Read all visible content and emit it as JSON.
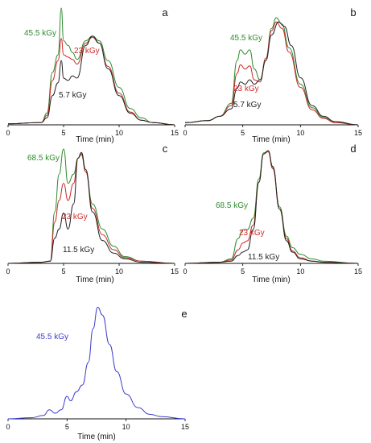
{
  "chart_data": [
    {
      "id": "a",
      "type": "line",
      "panel_label": "a",
      "xlabel": "Time (min)",
      "ylabel": "",
      "xlim": [
        0,
        15
      ],
      "ylim": [
        0,
        1
      ],
      "xticks": [
        "0",
        "5",
        "10",
        "15"
      ],
      "grid": false,
      "legend": "inline labels",
      "series": [
        {
          "name": "45.5 kGy",
          "color": "#2e8b2e",
          "points": [
            [
              0,
              0.01
            ],
            [
              3,
              0.02
            ],
            [
              3.5,
              0.1
            ],
            [
              4,
              0.45
            ],
            [
              4.5,
              0.6
            ],
            [
              4.8,
              1.0
            ],
            [
              5.0,
              0.72
            ],
            [
              5.4,
              0.68
            ],
            [
              5.8,
              0.62
            ],
            [
              6.2,
              0.56
            ],
            [
              7.0,
              0.72
            ],
            [
              7.6,
              0.76
            ],
            [
              8.2,
              0.72
            ],
            [
              9.0,
              0.55
            ],
            [
              10,
              0.32
            ],
            [
              11,
              0.14
            ],
            [
              12,
              0.06
            ],
            [
              13,
              0.02
            ],
            [
              15,
              0.0
            ]
          ]
        },
        {
          "name": "23 kGy",
          "color": "#cc2a2a",
          "points": [
            [
              0,
              0.01
            ],
            [
              3,
              0.02
            ],
            [
              3.5,
              0.08
            ],
            [
              4,
              0.38
            ],
            [
              4.5,
              0.55
            ],
            [
              4.8,
              0.74
            ],
            [
              5.0,
              0.6
            ],
            [
              5.4,
              0.58
            ],
            [
              5.8,
              0.56
            ],
            [
              6.2,
              0.52
            ],
            [
              7.0,
              0.7
            ],
            [
              7.6,
              0.75
            ],
            [
              8.2,
              0.7
            ],
            [
              9.0,
              0.5
            ],
            [
              10,
              0.27
            ],
            [
              11,
              0.11
            ],
            [
              12,
              0.04
            ],
            [
              13,
              0.02
            ],
            [
              15,
              0.0
            ]
          ]
        },
        {
          "name": "5.7 kGy",
          "color": "#222222",
          "points": [
            [
              0,
              0.01
            ],
            [
              3,
              0.02
            ],
            [
              3.5,
              0.06
            ],
            [
              4,
              0.25
            ],
            [
              4.5,
              0.36
            ],
            [
              4.8,
              0.55
            ],
            [
              5.0,
              0.4
            ],
            [
              5.4,
              0.38
            ],
            [
              5.8,
              0.42
            ],
            [
              6.2,
              0.4
            ],
            [
              7.0,
              0.68
            ],
            [
              7.6,
              0.76
            ],
            [
              8.2,
              0.7
            ],
            [
              9.0,
              0.48
            ],
            [
              10,
              0.25
            ],
            [
              11,
              0.1
            ],
            [
              12,
              0.04
            ],
            [
              13,
              0.02
            ],
            [
              15,
              0.0
            ]
          ]
        }
      ],
      "annotations": [
        "45.5 kGy",
        "23 kGy",
        "5.7 kGy"
      ]
    },
    {
      "id": "b",
      "type": "line",
      "panel_label": "b",
      "xlabel": "Time (min)",
      "ylabel": "",
      "xlim": [
        0,
        15
      ],
      "ylim": [
        0,
        1
      ],
      "xticks": [
        "0",
        "5",
        "10",
        "15"
      ],
      "grid": false,
      "legend": "inline labels",
      "series": [
        {
          "name": "45.5 kGy",
          "color": "#2e8b2e",
          "points": [
            [
              0,
              0.02
            ],
            [
              2,
              0.04
            ],
            [
              3,
              0.08
            ],
            [
              4,
              0.2
            ],
            [
              4.5,
              0.6
            ],
            [
              4.8,
              0.7
            ],
            [
              5.2,
              0.66
            ],
            [
              5.6,
              0.7
            ],
            [
              6.0,
              0.52
            ],
            [
              6.5,
              0.42
            ],
            [
              7.0,
              0.62
            ],
            [
              7.5,
              0.9
            ],
            [
              7.9,
              1.0
            ],
            [
              8.4,
              0.94
            ],
            [
              9.0,
              0.72
            ],
            [
              10,
              0.38
            ],
            [
              11,
              0.16
            ],
            [
              12,
              0.07
            ],
            [
              13,
              0.03
            ],
            [
              15,
              0.0
            ]
          ]
        },
        {
          "name": "23 kGy",
          "color": "#cc2a2a",
          "points": [
            [
              0,
              0.02
            ],
            [
              2,
              0.04
            ],
            [
              3,
              0.08
            ],
            [
              4,
              0.18
            ],
            [
              4.5,
              0.48
            ],
            [
              4.8,
              0.56
            ],
            [
              5.2,
              0.52
            ],
            [
              5.6,
              0.55
            ],
            [
              6.0,
              0.42
            ],
            [
              6.5,
              0.4
            ],
            [
              7.0,
              0.62
            ],
            [
              7.5,
              0.88
            ],
            [
              7.9,
              0.96
            ],
            [
              8.4,
              0.9
            ],
            [
              9.0,
              0.68
            ],
            [
              10,
              0.35
            ],
            [
              11,
              0.14
            ],
            [
              12,
              0.06
            ],
            [
              13,
              0.02
            ],
            [
              15,
              0.0
            ]
          ]
        },
        {
          "name": "5.7 kGy",
          "color": "#222222",
          "points": [
            [
              0,
              0.02
            ],
            [
              2,
              0.04
            ],
            [
              3,
              0.08
            ],
            [
              4,
              0.15
            ],
            [
              4.5,
              0.34
            ],
            [
              4.8,
              0.4
            ],
            [
              5.2,
              0.38
            ],
            [
              5.6,
              0.42
            ],
            [
              6.0,
              0.38
            ],
            [
              6.5,
              0.42
            ],
            [
              7.0,
              0.6
            ],
            [
              7.5,
              0.84
            ],
            [
              8.1,
              0.96
            ],
            [
              8.6,
              0.92
            ],
            [
              9.2,
              0.74
            ],
            [
              10,
              0.44
            ],
            [
              11,
              0.18
            ],
            [
              12,
              0.08
            ],
            [
              13,
              0.03
            ],
            [
              15,
              0.0
            ]
          ]
        }
      ],
      "annotations": [
        "45.5 kGy",
        "23 kGy",
        "5.7 kGy"
      ]
    },
    {
      "id": "c",
      "type": "line",
      "panel_label": "c",
      "xlabel": "Time (min)",
      "ylabel": "",
      "xlim": [
        0,
        15
      ],
      "ylim": [
        0,
        1
      ],
      "xticks": [
        "0",
        "5",
        "10",
        "15"
      ],
      "grid": false,
      "legend": "inline labels",
      "series": [
        {
          "name": "68.5 kGy",
          "color": "#2e8b2e",
          "points": [
            [
              0,
              0.0
            ],
            [
              3,
              0.01
            ],
            [
              3.8,
              0.02
            ],
            [
              4.2,
              0.45
            ],
            [
              4.6,
              0.78
            ],
            [
              5.0,
              1.0
            ],
            [
              5.4,
              0.7
            ],
            [
              5.9,
              0.78
            ],
            [
              6.3,
              0.92
            ],
            [
              6.6,
              0.95
            ],
            [
              7.0,
              0.8
            ],
            [
              7.6,
              0.52
            ],
            [
              8.5,
              0.3
            ],
            [
              9.5,
              0.15
            ],
            [
              10.5,
              0.06
            ],
            [
              12,
              0.02
            ],
            [
              15,
              0.0
            ]
          ]
        },
        {
          "name": "23 kGy",
          "color": "#cc2a2a",
          "points": [
            [
              0,
              0.0
            ],
            [
              3,
              0.01
            ],
            [
              3.8,
              0.02
            ],
            [
              4.2,
              0.36
            ],
            [
              4.6,
              0.55
            ],
            [
              5.0,
              0.7
            ],
            [
              5.4,
              0.55
            ],
            [
              5.9,
              0.7
            ],
            [
              6.3,
              0.92
            ],
            [
              6.6,
              0.96
            ],
            [
              7.0,
              0.8
            ],
            [
              7.6,
              0.48
            ],
            [
              8.5,
              0.25
            ],
            [
              9.5,
              0.12
            ],
            [
              10.5,
              0.05
            ],
            [
              12,
              0.02
            ],
            [
              15,
              0.0
            ]
          ]
        },
        {
          "name": "11.5 kGy",
          "color": "#222222",
          "points": [
            [
              0,
              0.0
            ],
            [
              3,
              0.01
            ],
            [
              3.8,
              0.02
            ],
            [
              4.2,
              0.22
            ],
            [
              4.6,
              0.3
            ],
            [
              5.0,
              0.44
            ],
            [
              5.4,
              0.3
            ],
            [
              5.9,
              0.52
            ],
            [
              6.3,
              0.92
            ],
            [
              6.6,
              0.97
            ],
            [
              7.0,
              0.82
            ],
            [
              7.6,
              0.45
            ],
            [
              8.5,
              0.2
            ],
            [
              9.5,
              0.09
            ],
            [
              10.5,
              0.04
            ],
            [
              12,
              0.01
            ],
            [
              15,
              0.0
            ]
          ]
        }
      ],
      "annotations": [
        "68.5 kGy",
        "23 kGy",
        "11.5 kGy"
      ]
    },
    {
      "id": "d",
      "type": "line",
      "panel_label": "d",
      "xlabel": "Time (min)",
      "ylabel": "",
      "xlim": [
        0,
        15
      ],
      "ylim": [
        0,
        1
      ],
      "xticks": [
        "0",
        "5",
        "10",
        "15"
      ],
      "grid": false,
      "legend": "inline labels",
      "series": [
        {
          "name": "68.5 kGy",
          "color": "#2e8b2e",
          "points": [
            [
              0,
              0.0
            ],
            [
              3,
              0.01
            ],
            [
              4,
              0.04
            ],
            [
              4.6,
              0.22
            ],
            [
              5.0,
              0.3
            ],
            [
              5.4,
              0.3
            ],
            [
              5.9,
              0.4
            ],
            [
              6.4,
              0.75
            ],
            [
              6.8,
              0.98
            ],
            [
              7.2,
              0.99
            ],
            [
              7.6,
              0.85
            ],
            [
              8.2,
              0.5
            ],
            [
              8.8,
              0.24
            ],
            [
              9.3,
              0.14
            ],
            [
              10,
              0.08
            ],
            [
              11,
              0.04
            ],
            [
              12,
              0.02
            ],
            [
              15,
              0.0
            ]
          ]
        },
        {
          "name": "23 kGy",
          "color": "#cc2a2a",
          "points": [
            [
              0,
              0.0
            ],
            [
              3,
              0.01
            ],
            [
              4,
              0.03
            ],
            [
              4.6,
              0.12
            ],
            [
              5.0,
              0.18
            ],
            [
              5.4,
              0.2
            ],
            [
              5.9,
              0.34
            ],
            [
              6.4,
              0.72
            ],
            [
              6.8,
              0.97
            ],
            [
              7.2,
              0.99
            ],
            [
              7.6,
              0.84
            ],
            [
              8.2,
              0.48
            ],
            [
              8.8,
              0.22
            ],
            [
              9.3,
              0.11
            ],
            [
              10,
              0.05
            ],
            [
              11,
              0.02
            ],
            [
              12,
              0.01
            ],
            [
              15,
              0.0
            ]
          ]
        },
        {
          "name": "11.5 kGy",
          "color": "#222222",
          "points": [
            [
              0,
              0.0
            ],
            [
              3,
              0.01
            ],
            [
              4,
              0.02
            ],
            [
              4.6,
              0.07
            ],
            [
              5.0,
              0.1
            ],
            [
              5.4,
              0.12
            ],
            [
              5.9,
              0.3
            ],
            [
              6.4,
              0.72
            ],
            [
              6.8,
              0.97
            ],
            [
              7.2,
              1.0
            ],
            [
              7.6,
              0.86
            ],
            [
              8.2,
              0.48
            ],
            [
              8.8,
              0.2
            ],
            [
              9.3,
              0.1
            ],
            [
              10,
              0.04
            ],
            [
              11,
              0.02
            ],
            [
              12,
              0.01
            ],
            [
              15,
              0.0
            ]
          ]
        }
      ],
      "annotations": [
        "68.5 kGy",
        "23 kGy",
        "11.5 kGy"
      ]
    },
    {
      "id": "e",
      "type": "line",
      "panel_label": "e",
      "xlabel": "Time (min)",
      "ylabel": "",
      "xlim": [
        0,
        15
      ],
      "ylim": [
        0,
        1
      ],
      "xticks": [
        "0",
        "5",
        "10",
        "15"
      ],
      "grid": false,
      "legend": "inline labels",
      "series": [
        {
          "name": "45.5 kGy",
          "color": "#3c3ccc",
          "points": [
            [
              0,
              0.0
            ],
            [
              2,
              0.01
            ],
            [
              3,
              0.03
            ],
            [
              3.5,
              0.08
            ],
            [
              4.0,
              0.05
            ],
            [
              4.5,
              0.08
            ],
            [
              5.0,
              0.2
            ],
            [
              5.3,
              0.16
            ],
            [
              5.8,
              0.24
            ],
            [
              6.3,
              0.3
            ],
            [
              6.8,
              0.5
            ],
            [
              7.2,
              0.8
            ],
            [
              7.6,
              0.99
            ],
            [
              8.0,
              0.92
            ],
            [
              8.6,
              0.66
            ],
            [
              9.2,
              0.42
            ],
            [
              10,
              0.22
            ],
            [
              11,
              0.1
            ],
            [
              12,
              0.04
            ],
            [
              13,
              0.02
            ],
            [
              15,
              0.0
            ]
          ]
        }
      ],
      "annotations": [
        "45.5 kGy"
      ]
    }
  ]
}
